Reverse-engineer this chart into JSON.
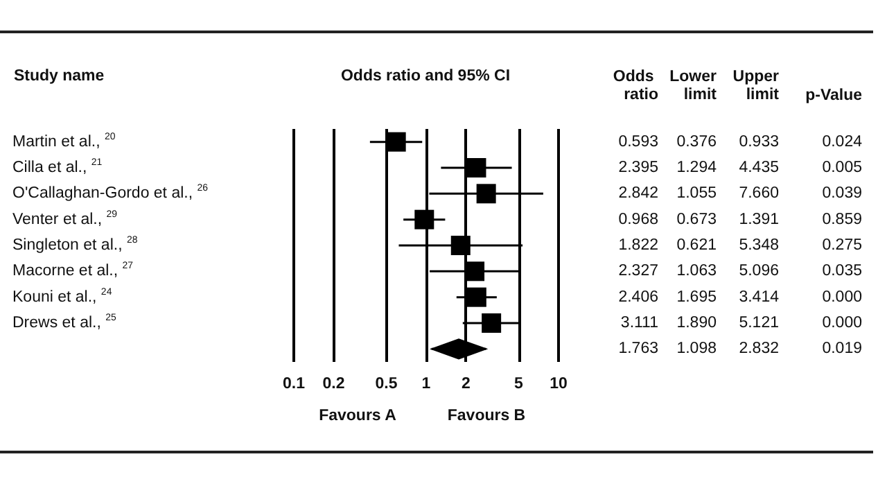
{
  "chart_data": {
    "type": "scatter",
    "orientation": "horizontal",
    "categories": [
      "Martin et al., $^{20}$",
      "Cilla et al., $^{21}$",
      "O'Callaghan-Gordo et al., $^{26}$",
      "Venter et al., $^{29}$",
      "Singleton et al., $^{28}$",
      "Macorne et al., $^{27}$",
      "Kouni et al., $^{24}$",
      "Drews et al., $^{25}$",
      null
    ],
    "series": [
      {
        "marker": "square",
        "color": "#000000",
        "values": [
          0.593,
          2.395,
          2.842,
          0.968,
          1.822,
          2.327,
          2.406,
          3.111,
          null
        ],
        "errors": [
          [
            0.376,
            0.933
          ],
          [
            1.294,
            4.435
          ],
          [
            1.055,
            7.66
          ],
          [
            0.673,
            1.391
          ],
          [
            0.621,
            5.348
          ],
          [
            1.063,
            5.096
          ],
          [
            1.695,
            3.414
          ],
          [
            1.89,
            5.121
          ],
          null
        ]
      },
      {
        "marker": "diamond",
        "color": "#000000",
        "values": [
          null,
          null,
          null,
          null,
          null,
          null,
          null,
          null,
          1.763
        ],
        "errors": [
          null,
          null,
          null,
          null,
          null,
          null,
          null,
          null,
          [
            1.098,
            2.832
          ]
        ]
      }
    ],
    "xlim": [
      0.1,
      10
    ],
    "xticks": [
      0.1,
      0.2,
      0.5,
      1,
      2,
      5,
      10
    ],
    "log": "x",
    "grid": "x",
    "annotations": [
      "Study name",
      "Odds ratio and 95% CI",
      "Odds ratio",
      "Lower limit",
      "Upper limit",
      "p-Value",
      "0.593",
      "0.376",
      "0.933",
      "0.024",
      "2.395",
      "1.294",
      "4.435",
      "0.005",
      "2.842",
      "1.055",
      "7.660",
      "0.039",
      "0.968",
      "0.673",
      "1.391",
      "0.859",
      "1.822",
      "0.621",
      "5.348",
      "0.275",
      "2.327",
      "1.063",
      "5.096",
      "0.035",
      "2.406",
      "1.695",
      "3.414",
      "0.000",
      "3.111",
      "1.890",
      "5.121",
      "0.000",
      "1.763",
      "1.098",
      "2.832",
      "0.019",
      "Favours A",
      "Favours B"
    ]
  }
}
